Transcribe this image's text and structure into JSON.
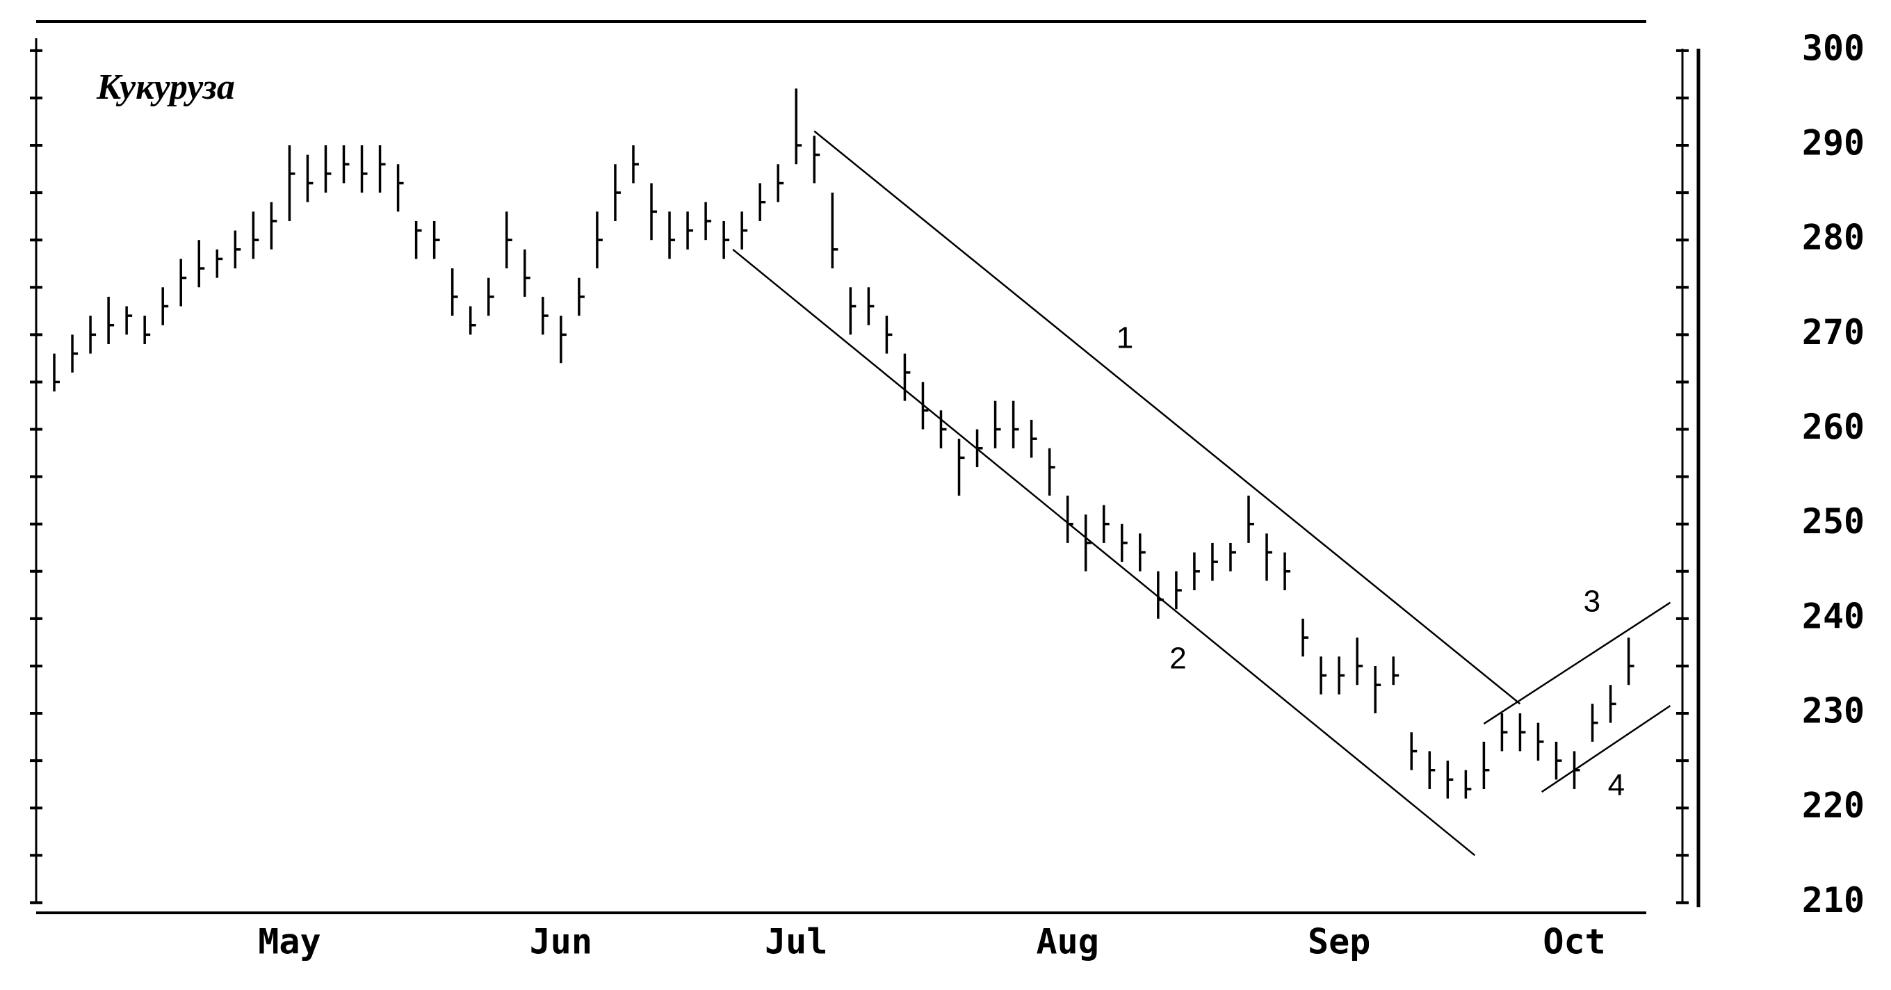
{
  "chart_data": {
    "type": "ohlc",
    "title": "Кукуруза",
    "categories": [
      null,
      null,
      null,
      null,
      null,
      null,
      null,
      null,
      null,
      null,
      null,
      null,
      null,
      "May",
      null,
      null,
      null,
      null,
      null,
      null,
      null,
      null,
      null,
      null,
      null,
      null,
      null,
      null,
      "Jun",
      null,
      null,
      null,
      null,
      null,
      null,
      null,
      null,
      null,
      null,
      null,
      null,
      "Jul",
      null,
      null,
      null,
      null,
      null,
      null,
      null,
      null,
      null,
      null,
      null,
      null,
      null,
      null,
      "Aug",
      null,
      null,
      null,
      null,
      null,
      null,
      null,
      null,
      null,
      null,
      null,
      null,
      null,
      null,
      "Sep",
      null,
      null,
      null,
      null,
      null,
      null,
      null,
      null,
      null,
      null,
      null,
      null,
      "Oct",
      null,
      null,
      null
    ],
    "high": [
      268,
      270,
      272,
      274,
      273,
      272,
      275,
      278,
      280,
      279,
      281,
      283,
      284,
      290,
      289,
      290,
      290,
      290,
      290,
      288,
      282,
      282,
      277,
      273,
      276,
      283,
      279,
      274,
      272,
      276,
      283,
      288,
      290,
      286,
      283,
      283,
      284,
      282,
      283,
      286,
      288,
      296,
      291,
      285,
      275,
      275,
      272,
      268,
      265,
      262,
      259,
      260,
      263,
      263,
      261,
      258,
      253,
      251,
      252,
      250,
      249,
      245,
      245,
      247,
      248,
      248,
      253,
      249,
      247,
      240,
      236,
      236,
      238,
      235,
      236,
      228,
      226,
      225,
      224,
      227,
      230,
      230,
      229,
      227,
      226,
      231,
      233,
      238
    ],
    "low": [
      264,
      266,
      268,
      269,
      270,
      269,
      271,
      273,
      275,
      276,
      277,
      278,
      279,
      282,
      284,
      285,
      286,
      285,
      285,
      283,
      278,
      278,
      272,
      270,
      272,
      277,
      274,
      270,
      267,
      272,
      277,
      282,
      286,
      280,
      278,
      279,
      280,
      278,
      279,
      282,
      284,
      288,
      286,
      277,
      270,
      271,
      268,
      263,
      260,
      258,
      253,
      256,
      258,
      258,
      257,
      253,
      248,
      245,
      248,
      246,
      245,
      240,
      241,
      243,
      244,
      245,
      248,
      244,
      243,
      236,
      232,
      232,
      233,
      230,
      233,
      224,
      222,
      221,
      221,
      222,
      226,
      226,
      225,
      223,
      222,
      227,
      229,
      233
    ],
    "close": [
      265,
      268,
      270,
      271,
      272,
      270,
      273,
      276,
      277,
      278,
      279,
      280,
      282,
      287,
      286,
      287,
      288,
      287,
      288,
      286,
      281,
      280,
      274,
      271,
      274,
      280,
      276,
      272,
      270,
      274,
      280,
      285,
      288,
      283,
      280,
      281,
      282,
      280,
      281,
      284,
      286,
      290,
      289,
      279,
      273,
      273,
      270,
      266,
      262,
      260,
      257,
      258,
      260,
      260,
      259,
      256,
      250,
      248,
      250,
      248,
      247,
      242,
      243,
      245,
      246,
      247,
      250,
      247,
      245,
      238,
      234,
      234,
      235,
      233,
      234,
      226,
      224,
      223,
      222,
      224,
      228,
      228,
      227,
      225,
      224,
      229,
      231,
      235
    ],
    "trendlines": [
      {
        "label": "1",
        "x": [
          42,
          81
        ],
        "y": [
          291.5,
          231
        ]
      },
      {
        "label": "2",
        "x": [
          37.5,
          78.5
        ],
        "y": [
          279,
          215
        ]
      },
      {
        "label": "3",
        "x": [
          79,
          89.3
        ],
        "y": [
          228.9,
          241.7
        ]
      },
      {
        "label": "4",
        "x": [
          82.2,
          89.3
        ],
        "y": [
          221.7,
          230.8
        ]
      }
    ],
    "ylim": [
      209,
      303
    ],
    "yticks": [
      210,
      220,
      230,
      240,
      250,
      260,
      270,
      280,
      290,
      300
    ],
    "yminorticks": [
      215,
      225,
      235,
      245,
      255,
      265,
      275,
      285,
      295
    ],
    "color": "#000000"
  }
}
